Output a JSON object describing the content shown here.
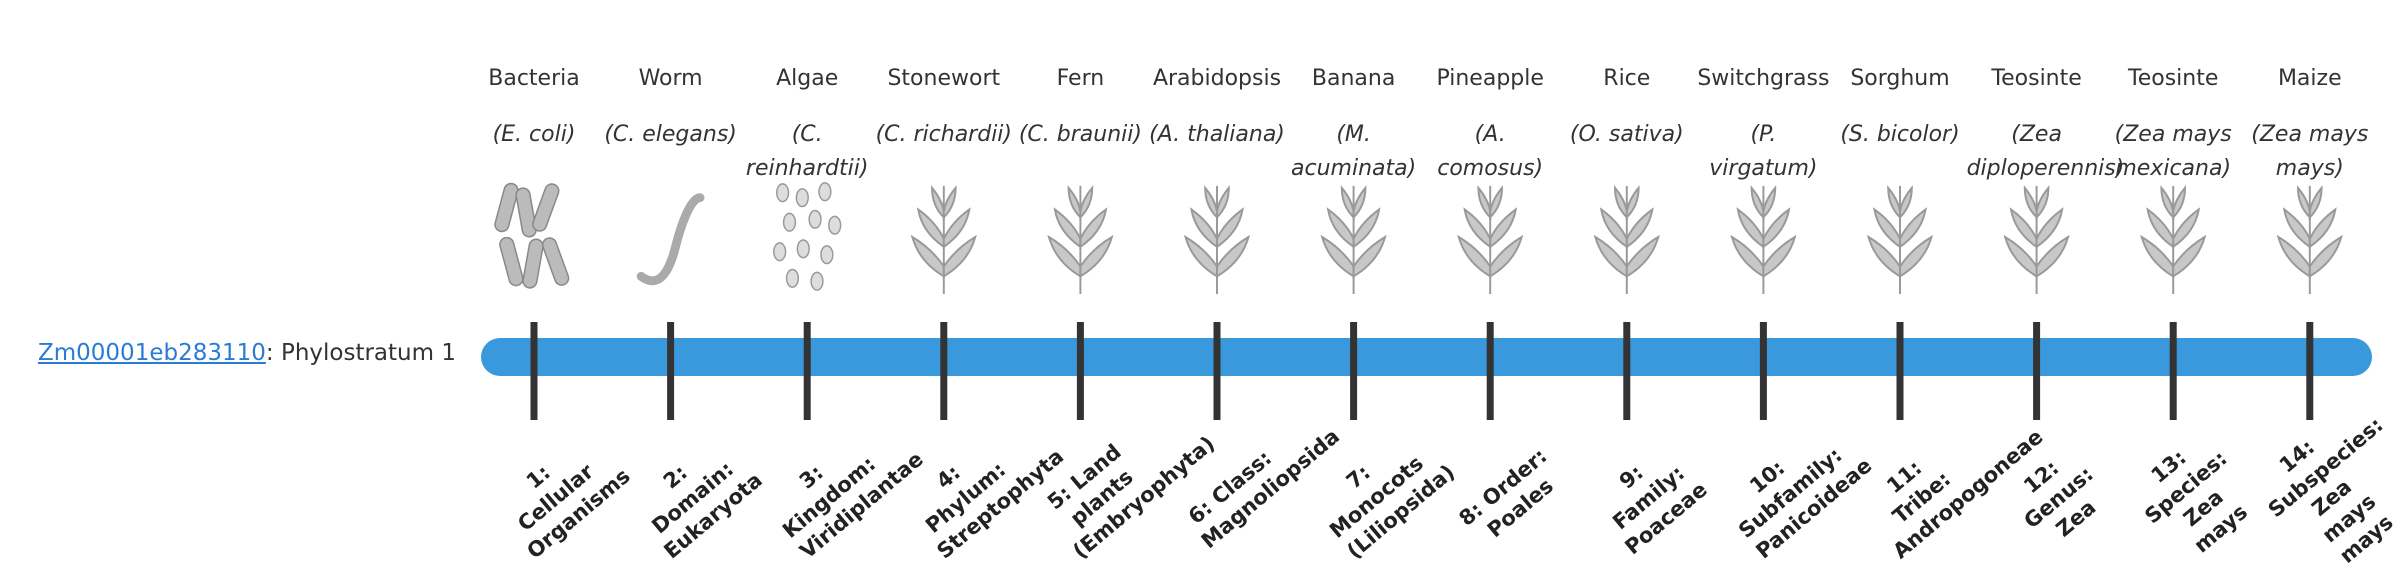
{
  "gene": {
    "id": "Zm00001eb283110",
    "label": ": Phylostratum 1"
  },
  "organisms": [
    {
      "name": "Bacteria",
      "species": "(E. coli)"
    },
    {
      "name": "Worm",
      "species": "(C. elegans)"
    },
    {
      "name": "Algae",
      "species": "(C. reinhardtii)"
    },
    {
      "name": "Stonewort",
      "species": "(C. richardii)"
    },
    {
      "name": "Fern",
      "species": "(C. braunii)"
    },
    {
      "name": "Arabidopsis",
      "species": "(A. thaliana)"
    },
    {
      "name": "Banana",
      "species": "(M. acuminata)"
    },
    {
      "name": "Pineapple",
      "species": "(A. comosus)"
    },
    {
      "name": "Rice",
      "species": "(O. sativa)"
    },
    {
      "name": "Switchgrass",
      "species": "(P. virgatum)"
    },
    {
      "name": "Sorghum",
      "species": "(S. bicolor)"
    },
    {
      "name": "Teosinte",
      "species": "(Zea diploperennis)"
    },
    {
      "name": "Teosinte",
      "species": "(Zea mays mexicana)"
    },
    {
      "name": "Maize",
      "species": "(Zea mays mays)"
    }
  ],
  "strata": [
    "1: Cellular Organisms",
    "2: Domain: Eukaryota",
    "3: Kingdom: Viridiplantae",
    "4: Phylum: Streptophyta",
    "5: Land plants (Embryophyta)",
    "6: Class: Magnoliopsida",
    "7: Monocots (Liliopsida)",
    "8: Order: Poales",
    "9: Family: Poaceae",
    "10: Subfamily: Panicoideae",
    "11: Tribe: Andropogoneae",
    "12: Genus: Zea",
    "13: Species: Zea mays",
    "14: Subspecies: Zea mays mays"
  ]
}
